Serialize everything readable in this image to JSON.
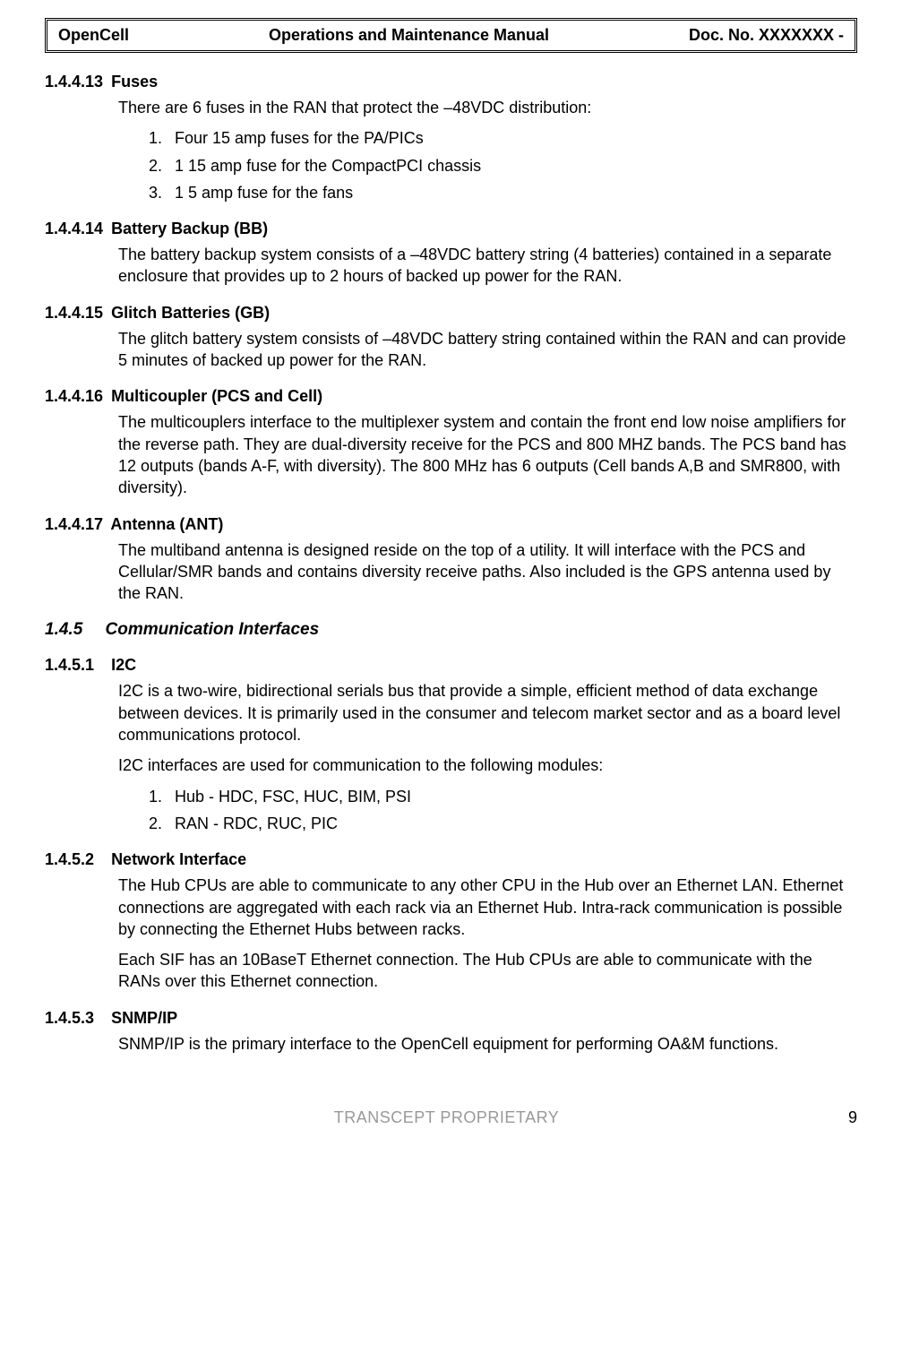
{
  "header": {
    "left": "OpenCell",
    "center": "Operations and Maintenance Manual",
    "right": "Doc. No.  XXXXXXX -"
  },
  "sections": {
    "fuses": {
      "num": "1.4.4.13",
      "title": "Fuses",
      "intro": "There are 6 fuses in the RAN that protect the –48VDC distribution:",
      "items": [
        "Four 15 amp fuses for the PA/PICs",
        "1 15 amp fuse for the CompactPCI chassis",
        "1 5 amp fuse for the fans"
      ]
    },
    "battery": {
      "num": "1.4.4.14",
      "title": "Battery Backup (BB)",
      "text": "The battery backup system consists of a –48VDC battery string (4 batteries) contained in a separate enclosure that provides up to 2 hours of backed up power for the RAN."
    },
    "glitch": {
      "num": "1.4.4.15",
      "title": "Glitch Batteries (GB)",
      "text": "The glitch battery system consists of –48VDC battery string contained within the RAN and can provide 5 minutes of backed up power for the RAN."
    },
    "multi": {
      "num": "1.4.4.16",
      "title": "Multicoupler (PCS and Cell)",
      "text": "The multicouplers interface to the multiplexer system and contain the front end low noise amplifiers for the reverse path.  They are dual-diversity receive for the PCS and 800 MHZ bands.  The PCS band has 12 outputs (bands A-F, with diversity).  The 800 MHz has 6 outputs (Cell bands A,B and SMR800, with diversity)."
    },
    "antenna": {
      "num": "1.4.4.17",
      "title": "Antenna (ANT)",
      "text": "The multiband antenna is designed reside on the top of a utility.  It will interface with the PCS and Cellular/SMR bands and contains diversity receive paths.  Also included is the GPS antenna used by the RAN."
    },
    "comm": {
      "num": "1.4.5",
      "title": "Communication Interfaces"
    },
    "i2c": {
      "num": "1.4.5.1",
      "title": "I2C",
      "p1": "I2C is a two-wire, bidirectional serials bus that provide a simple, efficient method of data exchange between devices.  It is primarily used in the consumer and telecom market sector and as a board level communications protocol.",
      "p2": "I2C interfaces are used for communication to the following modules:",
      "items": [
        "Hub - HDC, FSC, HUC, BIM, PSI",
        "RAN - RDC, RUC, PIC"
      ]
    },
    "network": {
      "num": "1.4.5.2",
      "title": "Network Interface",
      "p1": "The Hub CPUs are able to communicate to any other CPU in the Hub over an Ethernet LAN.  Ethernet connections are aggregated with each rack via an Ethernet Hub.  Intra-rack communication is possible by connecting the Ethernet Hubs between racks.",
      "p2": "Each SIF has an 10BaseT Ethernet connection.  The Hub CPUs are able to communicate with the RANs over this Ethernet connection."
    },
    "snmp": {
      "num": "1.4.5.3",
      "title": "SNMP/IP",
      "text": "SNMP/IP is the primary interface to the OpenCell equipment for performing OA&M functions."
    }
  },
  "footer": {
    "center": "TRANSCEPT PROPRIETARY",
    "page": "9"
  },
  "list_numbers": [
    "1.",
    "2.",
    "3."
  ],
  "colors": {
    "text": "#000000",
    "footer_gray": "#999999",
    "background": "#ffffff"
  }
}
